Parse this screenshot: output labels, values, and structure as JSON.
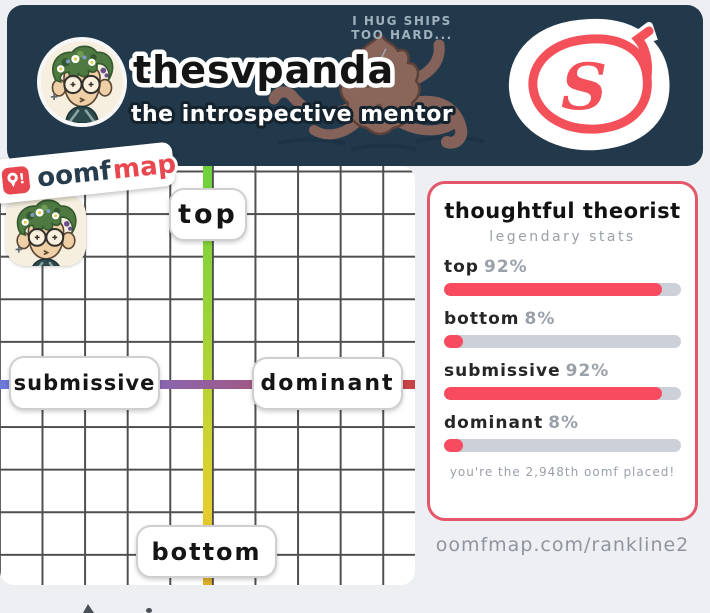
{
  "header": {
    "username": "thesvpanda",
    "tagline": "the introspective mentor",
    "speech_line1": "I HUG SHIPS",
    "speech_line2": "TOO HARD...",
    "speech_tick": "/",
    "logo_letter": "S",
    "colors": {
      "banner_bg": "#21394b",
      "logo_red": "#f4505a"
    }
  },
  "brand": {
    "badge_word1": "oomf",
    "badge_word2": "map",
    "pin_icon": "map-pin-exclamation-icon",
    "colors": {
      "navy": "#273c4d",
      "red": "#e8474f"
    }
  },
  "map": {
    "axis_labels": {
      "top": "top",
      "bottom": "bottom",
      "left": "submissive",
      "right": "dominant"
    },
    "marker": {
      "description": "user avatar placed near top-left (very top / very submissive)"
    },
    "colors": {
      "vertical_axis_top": "#6ed13c",
      "vertical_axis_bottom": "#ddad2b",
      "horizontal_axis_left": "#6b79d8",
      "horizontal_axis_right": "#c74243",
      "grid_line": "#4f4f4f"
    }
  },
  "stats_card": {
    "title": "thoughtful theorist",
    "subtitle": "legendary stats",
    "stats": [
      {
        "label": "top",
        "value": "92%",
        "pct": 92
      },
      {
        "label": "bottom",
        "value": "8%",
        "pct": 8
      },
      {
        "label": "submissive",
        "value": "92%",
        "pct": 92
      },
      {
        "label": "dominant",
        "value": "8%",
        "pct": 8
      }
    ],
    "footer": "you're the 2,948th oomf placed!",
    "colors": {
      "bar_fill": "#f94b60",
      "bar_track": "#ccd0d9",
      "border": "#e4576a"
    }
  },
  "footer_url": "oomfmap.com/rankline2"
}
